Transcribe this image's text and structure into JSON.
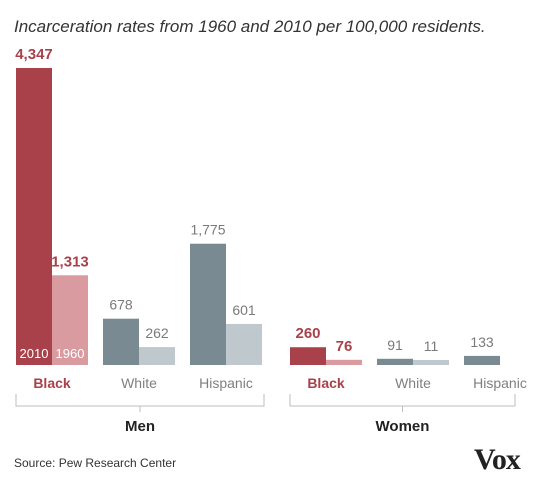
{
  "title": "Incarceration rates from 1960 and 2010 per 100,000 residents.",
  "source": "Source: Pew Research Center",
  "brand": "Vox",
  "colors": {
    "black_2010": "#a8414a",
    "black_1960": "#d99ba0",
    "other_2010": "#798a92",
    "other_1960": "#bfc8cc",
    "highlight_text": "#a8414a",
    "muted_text": "#7a7a7a"
  },
  "chart_data": {
    "type": "bar",
    "title": "Incarceration rates from 1960 and 2010 per 100,000 residents.",
    "series_years": [
      "2010",
      "1960"
    ],
    "groups": [
      {
        "name": "Men",
        "categories": [
          {
            "name": "Black",
            "values": {
              "2010": 4347,
              "1960": 1313
            },
            "labels": {
              "2010": "4,347",
              "1960": "1,313"
            },
            "highlight": true
          },
          {
            "name": "White",
            "values": {
              "2010": 678,
              "1960": 262
            },
            "labels": {
              "2010": "678",
              "1960": "262"
            },
            "highlight": false
          },
          {
            "name": "Hispanic",
            "values": {
              "2010": 1775,
              "1960": 601
            },
            "labels": {
              "2010": "1,775",
              "1960": "601"
            },
            "highlight": false
          }
        ]
      },
      {
        "name": "Women",
        "categories": [
          {
            "name": "Black",
            "values": {
              "2010": 260,
              "1960": 76
            },
            "labels": {
              "2010": "260",
              "1960": "76"
            },
            "highlight": true
          },
          {
            "name": "White",
            "values": {
              "2010": 91,
              "1960": 11
            },
            "labels": {
              "2010": "91",
              "1960": "11"
            },
            "highlight": false
          },
          {
            "name": "Hispanic",
            "values": {
              "2010": 133
            },
            "labels": {
              "2010": "133"
            },
            "highlight": false
          }
        ]
      }
    ],
    "ylim": [
      0,
      4347
    ],
    "grid": false
  }
}
